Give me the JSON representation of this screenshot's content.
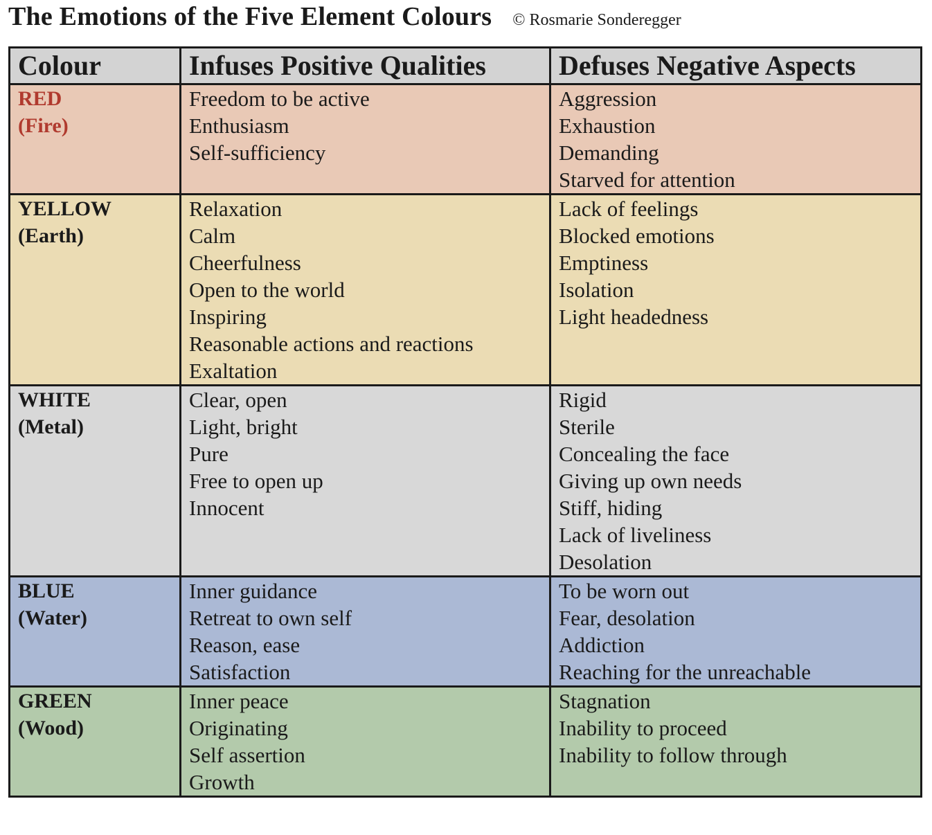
{
  "title": "The Emotions of the Five Element Colours",
  "credit": "© Rosmarie Sonderegger",
  "headers": {
    "colour": "Colour",
    "positive": "Infuses Positive Qualities",
    "negative": "Defuses Negative Aspects"
  },
  "rows": [
    {
      "colour": "RED",
      "element": "(Fire)",
      "positive": [
        "Freedom to be active",
        "Enthusiasm",
        "Self-sufficiency"
      ],
      "negative": [
        "Aggression",
        "Exhaustion",
        "Demanding",
        "Starved for attention"
      ]
    },
    {
      "colour": "YELLOW",
      "element": "(Earth)",
      "positive": [
        "Relaxation",
        "Calm",
        "Cheerfulness",
        "Open to the world",
        "Inspiring",
        "Reasonable actions and reactions",
        "Exaltation"
      ],
      "negative": [
        "Lack of feelings",
        "Blocked emotions",
        "Emptiness",
        "Isolation",
        "Light headedness"
      ]
    },
    {
      "colour": "WHITE",
      "element": "(Metal)",
      "positive": [
        "Clear, open",
        "Light, bright",
        "Pure",
        "Free to open up",
        "Innocent"
      ],
      "negative": [
        "Rigid",
        "Sterile",
        "Concealing the face",
        "Giving up own needs",
        "Stiff, hiding",
        "Lack of liveliness",
        "Desolation"
      ]
    },
    {
      "colour": "BLUE",
      "element": "(Water)",
      "positive": [
        "Inner guidance",
        "Retreat to own self",
        "Reason, ease",
        "Satisfaction"
      ],
      "negative": [
        "To be worn out",
        "Fear, desolation",
        "Addiction",
        "Reaching for the unreachable"
      ]
    },
    {
      "colour": "GREEN",
      "element": "(Wood)",
      "positive": [
        "Inner peace",
        "Originating",
        "Self assertion",
        "Growth"
      ],
      "negative": [
        "Stagnation",
        "Inability to proceed",
        "Inability to follow through"
      ]
    }
  ],
  "colors": {
    "header_bg": "#d3d3d3",
    "red_row": "#e9c9b6",
    "yellow_row": "#ebdcb4",
    "white_row": "#d8d8d8",
    "blue_row": "#abb9d5",
    "green_row": "#b3caab",
    "red_label": "#b03a2e"
  }
}
